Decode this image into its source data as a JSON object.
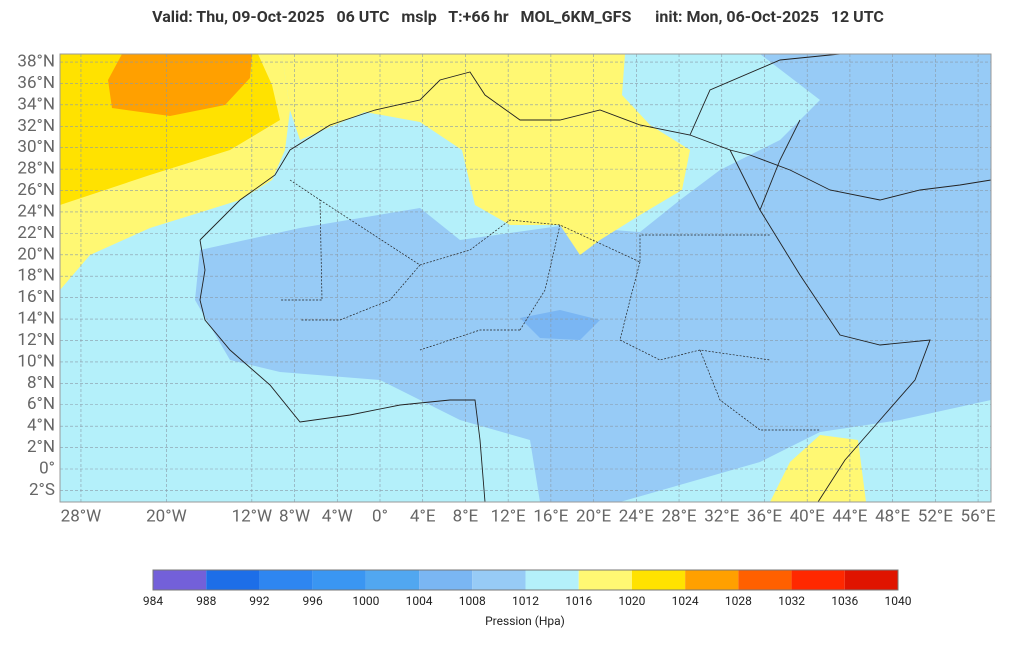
{
  "title": "Valid: Thu, 09-Oct-2025   06 UTC   mslp   T:+66 hr   MOL_6KM_GFS      init: Mon, 06-Oct-2025   12 UTC",
  "map": {
    "lat_ticks": [
      {
        "value": 38,
        "label": "38°N"
      },
      {
        "value": 36,
        "label": "36°N"
      },
      {
        "value": 34,
        "label": "34°N"
      },
      {
        "value": 32,
        "label": "32°N"
      },
      {
        "value": 30,
        "label": "30°N"
      },
      {
        "value": 28,
        "label": "28°N"
      },
      {
        "value": 26,
        "label": "26°N"
      },
      {
        "value": 24,
        "label": "24°N"
      },
      {
        "value": 22,
        "label": "22°N"
      },
      {
        "value": 20,
        "label": "20°N"
      },
      {
        "value": 18,
        "label": "18°N"
      },
      {
        "value": 16,
        "label": "16°N"
      },
      {
        "value": 14,
        "label": "14°N"
      },
      {
        "value": 12,
        "label": "12°N"
      },
      {
        "value": 10,
        "label": "10°N"
      },
      {
        "value": 8,
        "label": "8°N"
      },
      {
        "value": 6,
        "label": "6°N"
      },
      {
        "value": 4,
        "label": "4°N"
      },
      {
        "value": 2,
        "label": "2°N"
      },
      {
        "value": 0,
        "label": "0°"
      },
      {
        "value": -2,
        "label": "2°S"
      }
    ],
    "lon_ticks": [
      {
        "value": -28,
        "label": "28°W"
      },
      {
        "value": -20,
        "label": "20°W"
      },
      {
        "value": -12,
        "label": "12°W"
      },
      {
        "value": -8,
        "label": "8°W"
      },
      {
        "value": -4,
        "label": "4°W"
      },
      {
        "value": 0,
        "label": "0°"
      },
      {
        "value": 4,
        "label": "4°E"
      },
      {
        "value": 8,
        "label": "8°E"
      },
      {
        "value": 12,
        "label": "12°E"
      },
      {
        "value": 16,
        "label": "16°E"
      },
      {
        "value": 20,
        "label": "20°E"
      },
      {
        "value": 24,
        "label": "24°E"
      },
      {
        "value": 28,
        "label": "28°E"
      },
      {
        "value": 32,
        "label": "32°E"
      },
      {
        "value": 36,
        "label": "36°E"
      },
      {
        "value": 40,
        "label": "40°E"
      },
      {
        "value": 44,
        "label": "44°E"
      },
      {
        "value": 48,
        "label": "48°E"
      },
      {
        "value": 52,
        "label": "52°E"
      },
      {
        "value": 56,
        "label": "56°E"
      }
    ]
  },
  "colorbar": {
    "ticks": [
      984,
      988,
      992,
      996,
      1000,
      1004,
      1008,
      1012,
      1016,
      1020,
      1024,
      1028,
      1032,
      1036,
      1040
    ],
    "colors": [
      "#7360d9",
      "#1d6ee8",
      "#2e86f0",
      "#3a96f2",
      "#51a7f0",
      "#7ab6f3",
      "#97cbf6",
      "#b4f0fa",
      "#fff873",
      "#ffe200",
      "#ffa000",
      "#ff6000",
      "#ff2800",
      "#e01400"
    ],
    "label": "Pression (Hpa)"
  }
}
